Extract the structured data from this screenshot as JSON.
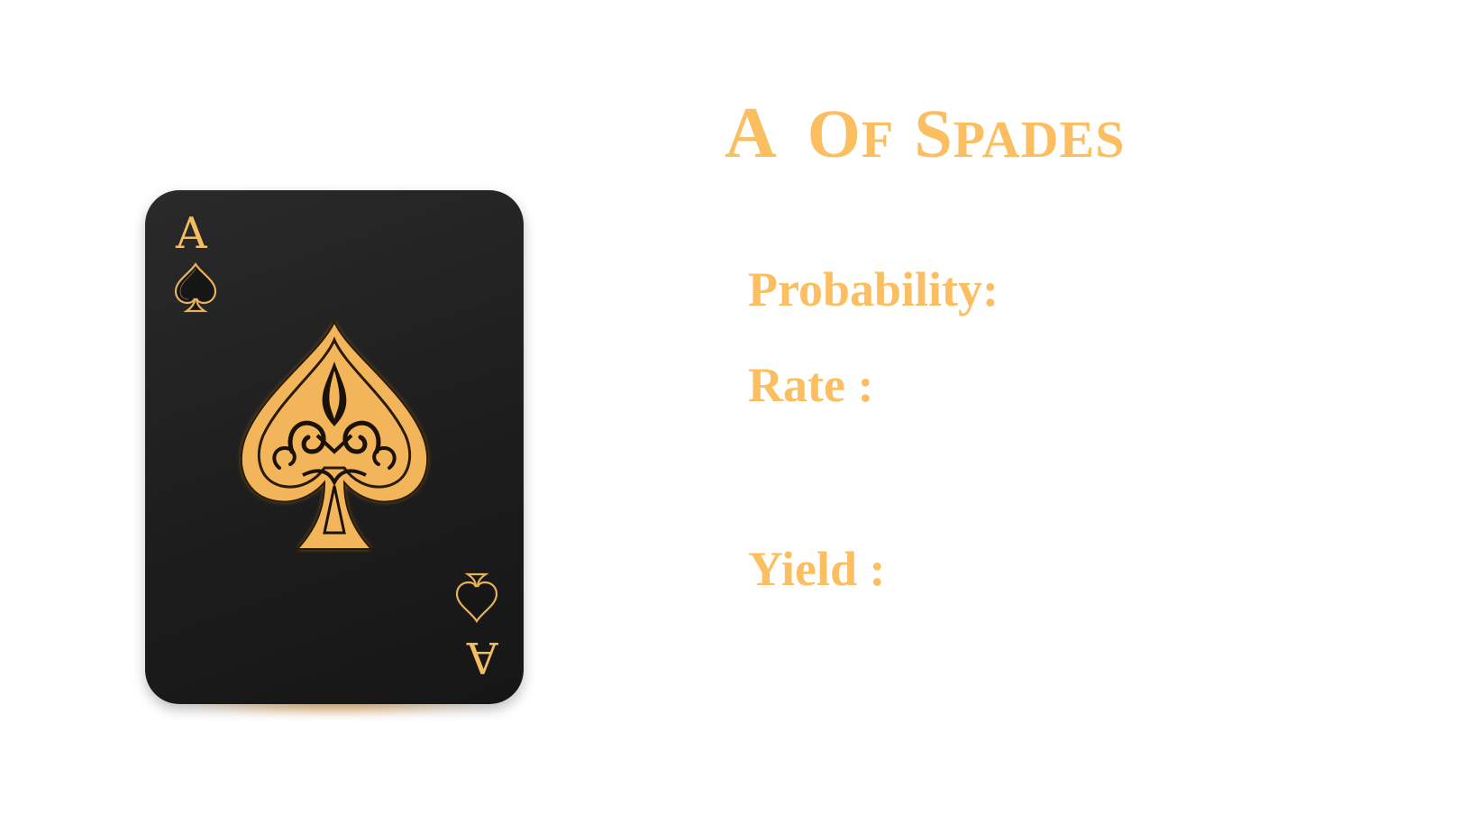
{
  "card": {
    "rank": "A",
    "suit_icon": "spade-icon"
  },
  "heading": {
    "rank": "A",
    "words": [
      "Of",
      "Spades"
    ]
  },
  "fields": {
    "probability_label": "Probability:",
    "rate_label": "Rate :",
    "yield_label": "Yield :"
  },
  "colors": {
    "gold": "#fbbf62",
    "card_black": "#1d1d1d",
    "glow_orange": "#ffa528"
  }
}
